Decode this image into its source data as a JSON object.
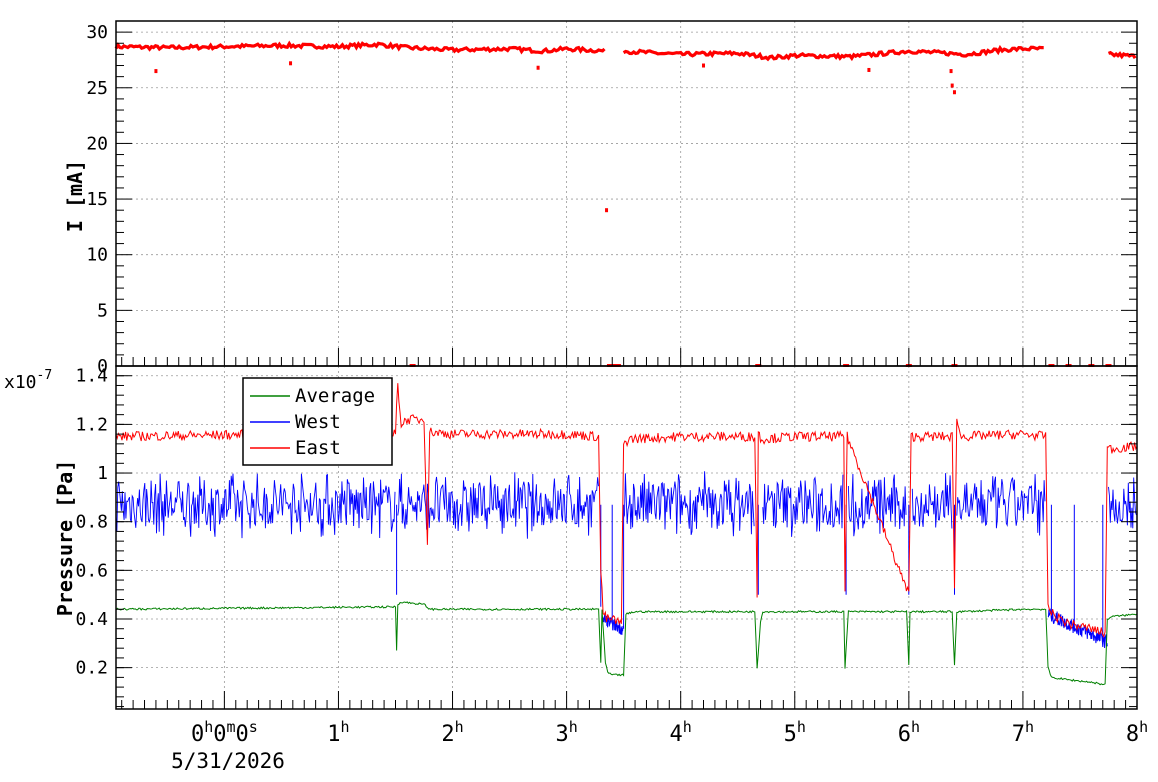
{
  "chart_data": [
    {
      "type": "scatter",
      "ylabel": "I [mA]",
      "ylim": [
        0,
        31
      ],
      "yticks": [
        "0",
        "5",
        "10",
        "15",
        "20",
        "25",
        "30"
      ],
      "ytick_values": [
        0,
        5,
        10,
        15,
        20,
        25,
        30
      ],
      "xlim_hours": [
        -0.95,
        8
      ],
      "grid": true,
      "series": [
        {
          "color": "#ff0000",
          "segments": [
            {
              "x": [
                -0.95,
                -0.5,
                0.0,
                0.5,
                1.0,
                1.35,
                1.6,
                2.0,
                2.5,
                2.8,
                3.0,
                3.35
              ],
              "y": [
                28.7,
                28.6,
                28.7,
                28.8,
                28.7,
                28.9,
                28.6,
                28.4,
                28.5,
                28.3,
                28.5,
                28.3
              ]
            },
            {
              "x": [
                3.5,
                3.8,
                4.0,
                4.5,
                4.8,
                5.0,
                5.5,
                6.0,
                6.5,
                6.8,
                7.0,
                7.2
              ],
              "y": [
                28.3,
                28.1,
                28.0,
                28.1,
                27.7,
                27.9,
                27.8,
                28.3,
                28.0,
                28.4,
                28.5,
                28.5
              ]
            },
            {
              "x": [
                7.75,
                7.9,
                8.0
              ],
              "y": [
                28.0,
                27.9,
                27.8
              ]
            }
          ],
          "outliers": {
            "x": [
              -0.6,
              0.58,
              2.75,
              3.35,
              4.2,
              5.65,
              6.37,
              6.38,
              6.4
            ],
            "y": [
              26.5,
              27.2,
              26.8,
              14.0,
              27.0,
              26.6,
              26.5,
              25.2,
              24.6
            ]
          },
          "zero_markers": {
            "x": [
              1.65,
              3.38,
              3.4,
              3.45,
              4.68,
              5.45,
              6.0,
              6.4,
              7.25,
              7.4,
              7.6,
              7.75
            ],
            "y": [
              0,
              0,
              0,
              0,
              0,
              0,
              0,
              0,
              0,
              0,
              0,
              0
            ]
          }
        }
      ]
    },
    {
      "type": "line",
      "ylabel": "Pressure [Pa]",
      "scale_label": "x10",
      "scale_exponent": "-7",
      "ylim": [
        0.03,
        1.44
      ],
      "yticks": [
        "0.2",
        "0.4",
        "0.6",
        "0.8",
        "1",
        "1.2",
        "1.4"
      ],
      "ytick_values": [
        0.2,
        0.4,
        0.6,
        0.8,
        1.0,
        1.2,
        1.4
      ],
      "xlim_hours": [
        -0.95,
        8
      ],
      "xticks_hours": [
        0,
        1,
        2,
        3,
        4,
        5,
        6,
        7,
        8
      ],
      "xtick_labels": [
        "0",
        "1",
        "2",
        "3",
        "4",
        "5",
        "6",
        "7",
        "8"
      ],
      "first_tick_suffix": [
        "h",
        "m",
        "s"
      ],
      "first_tick_digits": [
        "0",
        "0",
        "0"
      ],
      "hour_suffix": "h",
      "date_label": "5/31/2026",
      "legend": "top-left",
      "grid": true,
      "series": [
        {
          "name": "Average",
          "color": "#008000",
          "x": [
            -0.95,
            1.5,
            1.51,
            1.52,
            1.55,
            1.75,
            1.8,
            2.0,
            2.5,
            3.0,
            3.28,
            3.3,
            3.31,
            3.34,
            3.36,
            3.4,
            3.5,
            3.52,
            3.6,
            4.0,
            4.65,
            4.67,
            4.7,
            4.72,
            5.0,
            5.43,
            5.44,
            5.47,
            5.5,
            5.98,
            6.0,
            6.01,
            6.03,
            6.1,
            6.38,
            6.4,
            6.42,
            6.45,
            7.0,
            7.2,
            7.22,
            7.25,
            7.4,
            7.6,
            7.72,
            7.74,
            7.78,
            8.0
          ],
          "y": [
            0.44,
            0.45,
            0.27,
            0.46,
            0.47,
            0.46,
            0.44,
            0.44,
            0.44,
            0.44,
            0.44,
            0.22,
            0.44,
            0.22,
            0.18,
            0.17,
            0.17,
            0.42,
            0.43,
            0.43,
            0.43,
            0.2,
            0.39,
            0.43,
            0.43,
            0.43,
            0.2,
            0.43,
            0.43,
            0.43,
            0.21,
            0.43,
            0.43,
            0.43,
            0.43,
            0.21,
            0.43,
            0.43,
            0.44,
            0.44,
            0.2,
            0.16,
            0.15,
            0.14,
            0.13,
            0.4,
            0.41,
            0.42
          ]
        },
        {
          "name": "West",
          "color": "#0000ff",
          "band_center": 0.87,
          "band_halfwidth": 0.12,
          "segments": [
            [
              -0.95,
              1.5
            ],
            [
              1.52,
              3.28
            ],
            [
              3.5,
              4.65
            ],
            [
              4.72,
              5.43
            ],
            [
              5.47,
              5.98
            ],
            [
              6.03,
              6.38
            ],
            [
              6.42,
              7.2
            ],
            [
              7.75,
              8.0
            ]
          ],
          "dips": {
            "x": [
              1.51,
              3.3,
              3.4,
              3.5,
              4.68,
              5.45,
              6.0,
              6.4,
              7.25,
              7.45,
              7.7
            ],
            "y": [
              0.5,
              0.45,
              0.38,
              0.36,
              0.5,
              0.5,
              0.5,
              0.5,
              0.42,
              0.35,
              0.3
            ]
          }
        },
        {
          "name": "East",
          "color": "#ff0000",
          "x": [
            -0.95,
            0.5,
            1.0,
            1.5,
            1.52,
            1.55,
            1.6,
            1.75,
            1.78,
            1.8,
            2.0,
            2.5,
            3.0,
            3.28,
            3.3,
            3.32,
            3.35,
            3.4,
            3.48,
            3.5,
            3.55,
            4.0,
            4.65,
            4.67,
            4.68,
            4.7,
            5.0,
            5.43,
            5.44,
            5.46,
            6.0,
            6.02,
            6.38,
            6.4,
            6.42,
            6.45,
            7.0,
            7.2,
            7.22,
            7.26,
            7.4,
            7.6,
            7.72,
            7.74,
            7.78,
            8.0
          ],
          "y": [
            1.15,
            1.16,
            1.16,
            1.16,
            1.37,
            1.2,
            1.22,
            1.22,
            0.72,
            1.17,
            1.16,
            1.16,
            1.16,
            1.15,
            0.6,
            0.43,
            0.4,
            0.4,
            0.38,
            1.12,
            1.14,
            1.15,
            1.15,
            0.5,
            1.17,
            1.14,
            1.15,
            1.15,
            0.52,
            1.15,
            0.5,
            1.15,
            1.15,
            0.52,
            1.24,
            1.15,
            1.16,
            1.15,
            0.45,
            0.42,
            0.38,
            0.36,
            0.34,
            1.1,
            1.1,
            1.11
          ]
        }
      ]
    }
  ]
}
